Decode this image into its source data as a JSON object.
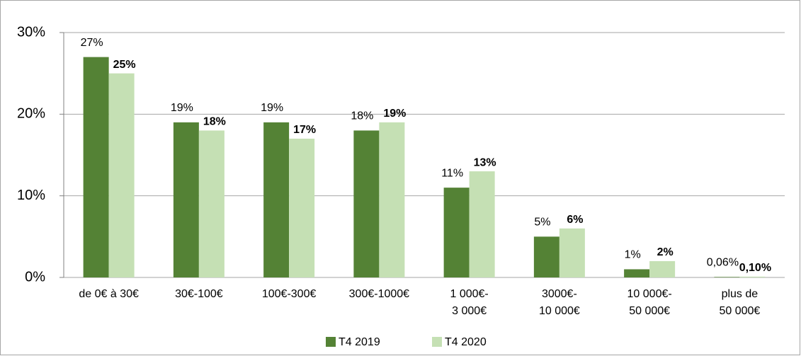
{
  "chart_data": {
    "type": "bar",
    "categories": [
      "de 0€ à 30€",
      "30€-100€",
      "100€-300€",
      "300€-1000€",
      "1 000€-\n3 000€",
      "3000€-\n10 000€",
      "10 000€-\n50 000€",
      "plus de\n50 000€"
    ],
    "series": [
      {
        "name": "T4 2019",
        "color": "#548235",
        "values": [
          27,
          19,
          19,
          18,
          11,
          5,
          1,
          0.06
        ],
        "value_labels": [
          "27%",
          "19%",
          "19%",
          "18%",
          "11%",
          "5%",
          "1%",
          "0,06%"
        ]
      },
      {
        "name": "T4 2020",
        "color": "#c5e0b4",
        "values": [
          25,
          18,
          17,
          19,
          13,
          6,
          2,
          0.1
        ],
        "value_labels": [
          "25%",
          "18%",
          "17%",
          "19%",
          "13%",
          "6%",
          "2%",
          "0,10%"
        ]
      }
    ],
    "ylim": [
      0,
      30
    ],
    "yticks": [
      {
        "value": 0,
        "label": "0%"
      },
      {
        "value": 10,
        "label": "10%"
      },
      {
        "value": 20,
        "label": "20%"
      },
      {
        "value": 30,
        "label": "30%"
      }
    ],
    "grid": true,
    "legend": "bottom"
  }
}
